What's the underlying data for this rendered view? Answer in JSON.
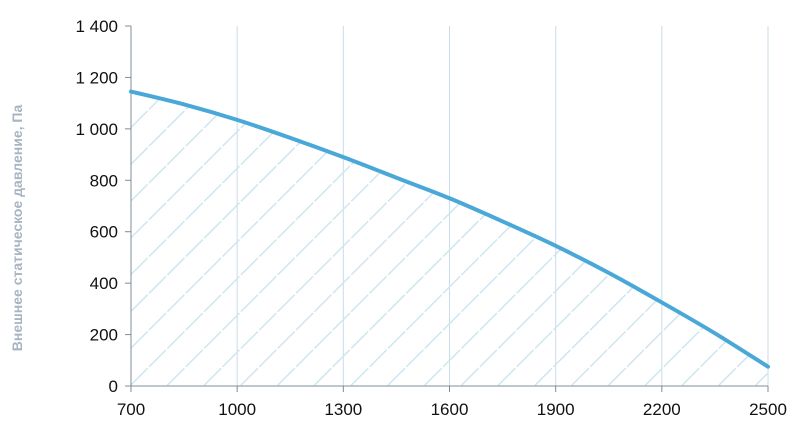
{
  "chart_data": {
    "type": "area",
    "title": "",
    "xlabel": "",
    "ylabel": "Внешнее статическое давление, Па",
    "xlim": [
      700,
      2500
    ],
    "ylim": [
      0,
      1400
    ],
    "x_ticks": [
      "700",
      "1000",
      "1300",
      "1600",
      "1900",
      "2200",
      "2500"
    ],
    "y_ticks": [
      "0",
      "200",
      "400",
      "600",
      "800",
      "1 000",
      "1 200",
      "1 400"
    ],
    "x_tick_values": [
      700,
      1000,
      1300,
      1600,
      1900,
      2200,
      2500
    ],
    "y_tick_values": [
      0,
      200,
      400,
      600,
      800,
      1000,
      1200,
      1400
    ],
    "grid": "vertical",
    "fill": "hatched",
    "colors": {
      "line": "#4aa8d8",
      "hatch": "#cfe6f0",
      "grid": "#c9dcea",
      "axis": "#7f8c99"
    },
    "series": [
      {
        "x": [
          700,
          850,
          1000,
          1150,
          1300,
          1450,
          1600,
          1750,
          1900,
          2050,
          2200,
          2350,
          2500
        ],
        "values": [
          1145,
          1095,
          1035,
          965,
          890,
          810,
          730,
          640,
          545,
          440,
          325,
          205,
          75
        ]
      }
    ]
  }
}
